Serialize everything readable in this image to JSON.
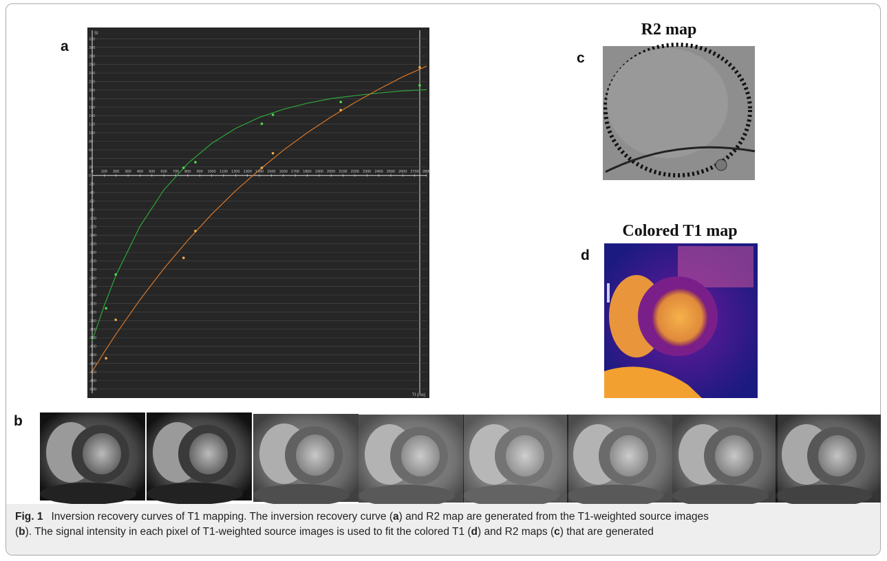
{
  "panels": {
    "a": "a",
    "b": "b",
    "c": "c",
    "d": "d",
    "c_title": "R2 map",
    "d_title": "Colored T1 map"
  },
  "chart_data": {
    "type": "scatter",
    "y_label": "SI",
    "x_label": "TI (ms)",
    "background": "#262626",
    "grid": true,
    "xlim": [
      0,
      2800
    ],
    "ylim": [
      -510,
      340
    ],
    "xticks": [
      0,
      100,
      200,
      300,
      400,
      500,
      600,
      700,
      800,
      900,
      1000,
      1100,
      1200,
      1300,
      1400,
      1500,
      1600,
      1700,
      1800,
      1900,
      2000,
      2100,
      2200,
      2300,
      2400,
      2500,
      2600,
      2700,
      2800
    ],
    "yticks": [
      -500,
      -480,
      -460,
      -440,
      -420,
      -400,
      -380,
      -360,
      -340,
      -320,
      -300,
      -280,
      -260,
      -240,
      -220,
      -200,
      -180,
      -160,
      -140,
      -120,
      -100,
      -80,
      -60,
      -40,
      -20,
      0,
      20,
      40,
      60,
      80,
      100,
      120,
      140,
      160,
      180,
      200,
      220,
      240,
      260,
      280,
      300,
      320
    ],
    "series": [
      {
        "type": "line",
        "color": "#2fa83a",
        "x": [
          0,
          100,
          200,
          400,
          600,
          800,
          1000,
          1200,
          1400,
          1600,
          1800,
          2000,
          2200,
          2400,
          2600,
          2800
        ],
        "values": [
          -387,
          -305,
          -233,
          -119,
          -34,
          28,
          75,
          110,
          136,
          155,
          169,
          180,
          187,
          193,
          198,
          201
        ]
      },
      {
        "type": "line",
        "color": "#d9782a",
        "x": [
          0,
          100,
          200,
          400,
          600,
          800,
          1000,
          1200,
          1400,
          1600,
          1800,
          2000,
          2200,
          2400,
          2600,
          2800
        ],
        "values": [
          -459,
          -414,
          -371,
          -291,
          -218,
          -152,
          -91,
          -36,
          13,
          59,
          100,
          137,
          171,
          202,
          231,
          256
        ]
      },
      {
        "type": "scatter",
        "color": "#4ce04c",
        "x": [
          116,
          197,
          765,
          864,
          1420,
          1513,
          2081,
          2742
        ],
        "values": [
          -311,
          -232,
          18,
          31,
          121,
          142,
          172,
          211
        ]
      },
      {
        "type": "scatter",
        "color": "#f2b04a",
        "x": [
          116,
          197,
          765,
          864,
          1420,
          1513,
          2081,
          2742
        ],
        "values": [
          -428,
          -338,
          -193,
          -130,
          18,
          52,
          153,
          253
        ]
      }
    ]
  },
  "caption": {
    "lines": [
      [
        {
          "text": "Fig. 1",
          "bold": true
        },
        {
          "text": "Inversion recovery curves of T1 mapping. The inversion recovery curve (",
          "bold": false
        },
        {
          "text": "a",
          "bold": true
        },
        {
          "text": ") and R2 map are generated from the T1-weighted  source images",
          "bold": false
        }
      ],
      [
        {
          "text": "(",
          "bold": false
        },
        {
          "text": "b",
          "bold": true
        },
        {
          "text": "). The signal intensity in each pixel of T1-weighted source images is used to fit the colored T1 (",
          "bold": false
        },
        {
          "text": "d",
          "bold": true
        },
        {
          "text": ") and R2 maps (",
          "bold": false
        },
        {
          "text": "c",
          "bold": true
        },
        {
          "text": ") that are generated",
          "bold": false
        }
      ]
    ]
  }
}
